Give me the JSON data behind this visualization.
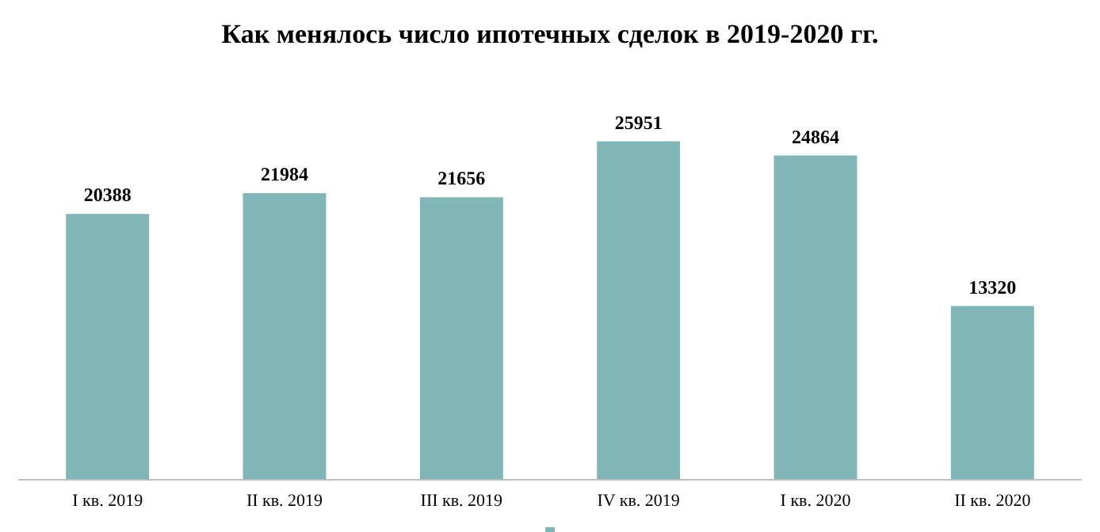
{
  "chart_data": {
    "type": "bar",
    "title": "Как менялось число ипотечных сделок в 2019-2020 гг.",
    "categories": [
      "I кв. 2019",
      "II кв. 2019",
      "III кв. 2019",
      "IV кв. 2019",
      "I кв. 2020",
      "II кв. 2020"
    ],
    "values": [
      20388,
      21984,
      21656,
      25951,
      24864,
      13320
    ],
    "color": "#80b6b8",
    "data_labels": true
  }
}
